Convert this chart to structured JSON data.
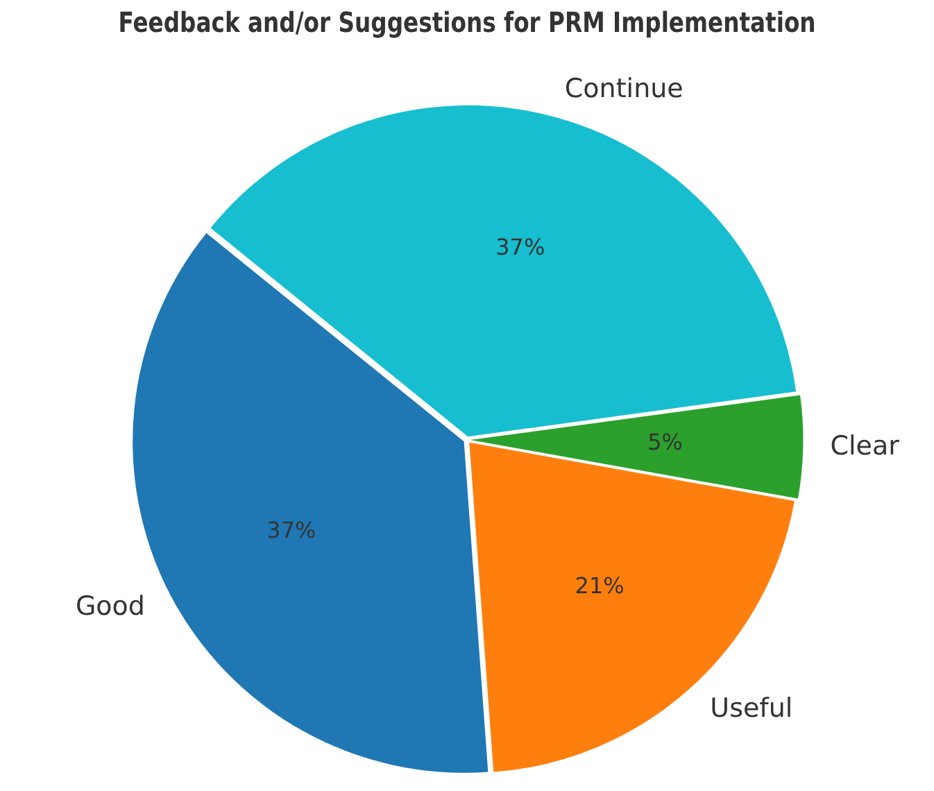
{
  "chart_data": {
    "type": "pie",
    "title": "Feedback and/or Suggestions for PRM Implementation",
    "categories": [
      "Continue",
      "Clear",
      "Useful",
      "Good"
    ],
    "values": [
      37,
      5,
      21,
      37
    ],
    "colors": [
      "#17becf",
      "#2ca02c",
      "#ff7f0e",
      "#1f77b4"
    ],
    "value_labels": [
      "37%",
      "5%",
      "21%",
      "37%"
    ],
    "legend": false
  }
}
